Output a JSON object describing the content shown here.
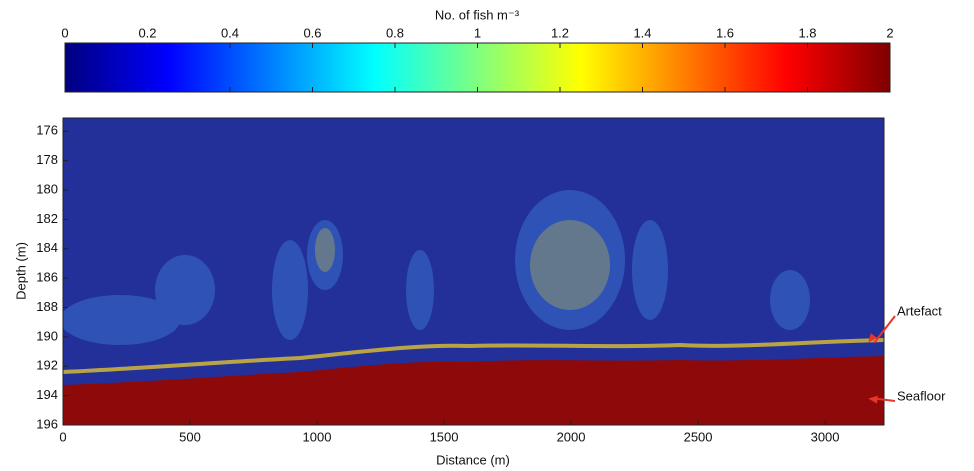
{
  "chart_data": {
    "type": "heatmap",
    "colorbar": {
      "label": "No. of fish m⁻³",
      "clim": [
        0,
        2
      ],
      "ticks": [
        0,
        0.2,
        0.4,
        0.6,
        0.8,
        1,
        1.2,
        1.4,
        1.6,
        1.8,
        2
      ],
      "colormap": "jet"
    },
    "x_label": "Distance (m)",
    "y_label": "Depth (m)",
    "xlim": [
      0,
      3232
    ],
    "xticks": [
      0,
      500,
      1000,
      1500,
      2000,
      2500,
      3000
    ],
    "ylim": [
      196,
      175.1
    ],
    "yticks": [
      176,
      178,
      180,
      182,
      184,
      186,
      188,
      190,
      192,
      194,
      196
    ],
    "annotations": [
      {
        "text": "Artefact",
        "x": 3170,
        "y": 190.4
      },
      {
        "text": "Seafloor",
        "x": 3170,
        "y": 194.2
      }
    ]
  }
}
